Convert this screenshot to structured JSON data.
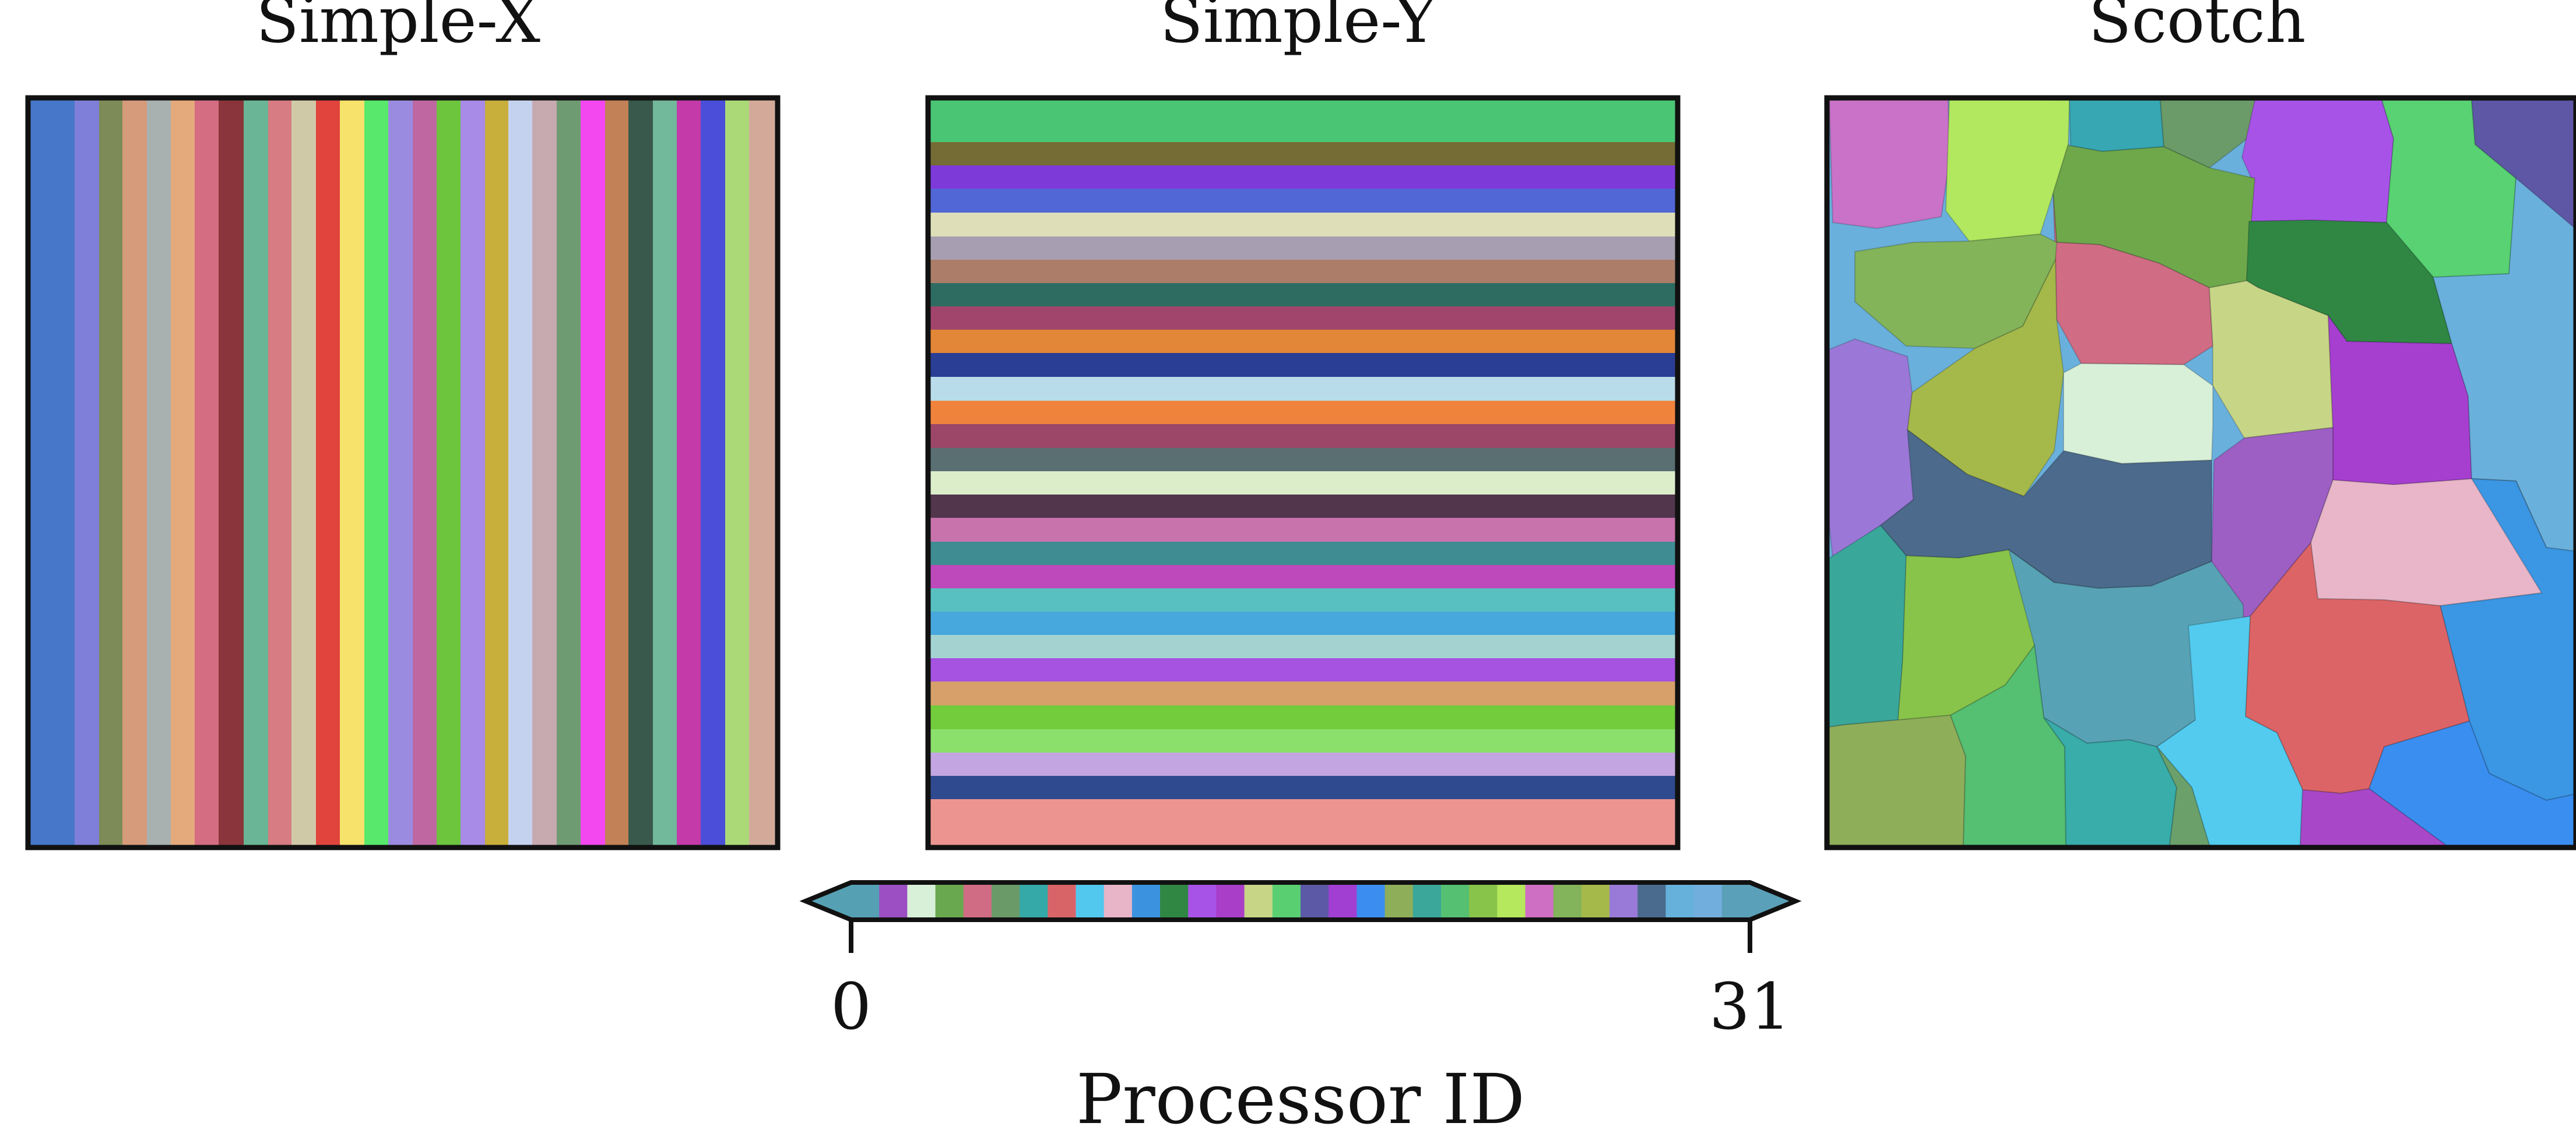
{
  "chart_data": {
    "type": "heatmap",
    "colorbar_label": "Processor ID",
    "colorbar_min_label": "0",
    "colorbar_max_label": "31",
    "num_processors": 32,
    "palette": [
      "#55a1b3",
      "#9b4fc2",
      "#d8f0d8",
      "#6aa84f",
      "#d06c84",
      "#6a9a68",
      "#35a9a7",
      "#d96468",
      "#52c8ef",
      "#e8b4c7",
      "#3b93e0",
      "#2f8743",
      "#a853e8",
      "#a93ec8",
      "#c7d686",
      "#59cf72",
      "#5c59a7",
      "#a13fd2",
      "#3b8ef0",
      "#8fae5a",
      "#3aa79a",
      "#55bf72",
      "#88c44a",
      "#b5e85c",
      "#cf6fc4",
      "#83b35a",
      "#a5b94b",
      "#9a7ad8",
      "#4a6b8d",
      "#66b0dc",
      "#72aedd",
      "#5aa0b8"
    ],
    "panels": [
      {
        "title": "Simple-X",
        "orientation": "vertical-stripes",
        "colors": [
          "#4677c8",
          "#7f7fd9",
          "#7c8b58",
          "#d59b7a",
          "#a8b0b0",
          "#e5aa7c",
          "#d56d82",
          "#8a353b",
          "#6ab595",
          "#d77c82",
          "#cfc9a8",
          "#e1443d",
          "#f7e26b",
          "#58e96c",
          "#9b8be0",
          "#bf67a1",
          "#6dc43d",
          "#a88ae7",
          "#c8ae3b",
          "#c5d2ef",
          "#c7a9b0",
          "#6f9b73",
          "#f347f0",
          "#c38157",
          "#38594c",
          "#72b89a",
          "#c43aa8",
          "#4a4ed8",
          "#acd978",
          "#d3aa9a",
          "#d3aa9a",
          "#d3aa9a"
        ]
      },
      {
        "title": "Simple-Y",
        "orientation": "horizontal-stripes",
        "colors": [
          "#49c574",
          "#756b34",
          "#7d3ad9",
          "#5267d6",
          "#dedeb8",
          "#a79fb1",
          "#ac7d69",
          "#2e6c62",
          "#a1456d",
          "#e28637",
          "#2b3e95",
          "#b8dce9",
          "#f0833c",
          "#9c4768",
          "#596f72",
          "#dcedca",
          "#51364c",
          "#c873ac",
          "#3f8c93",
          "#bd49ba",
          "#58c0c0",
          "#46a8dc",
          "#a3d2d1",
          "#a553e0",
          "#d7a06a",
          "#72cc3c",
          "#8be06c",
          "#c3a6e1",
          "#2f4a8f",
          "#ec9590",
          "#ec9590",
          "#ec9590"
        ]
      },
      {
        "title": "Scotch",
        "orientation": "irregular-regions",
        "colors": [
          "#c972c8",
          "#b1e85f",
          "#37a7b3",
          "#6b9b68",
          "#a853e8",
          "#58d272",
          "#5d57a6",
          "#6ea84b",
          "#d06c84",
          "#2f8743",
          "#83b459",
          "#c7d686",
          "#a5b94b",
          "#d8f0d8",
          "#a63fd0",
          "#6ab0dc",
          "#9b78d8",
          "#4b6a8c",
          "#9e5fc4",
          "#e8b6c8",
          "#3b96e3",
          "#3aa79b",
          "#88c44a",
          "#58a2b5",
          "#dd6466",
          "#52cbee",
          "#3a8ef0",
          "#8fae5a",
          "#55bf72",
          "#38ada9",
          "#a848c8",
          "#6ba06a"
        ]
      }
    ]
  }
}
